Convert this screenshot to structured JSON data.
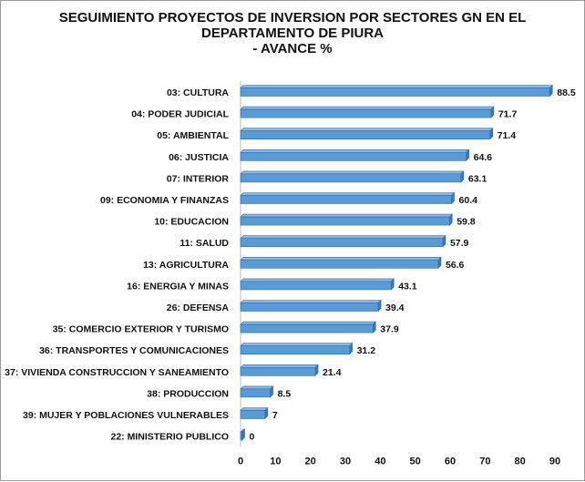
{
  "chart_data": {
    "type": "bar",
    "orientation": "horizontal",
    "title": "SEGUIMIENTO PROYECTOS DE INVERSION POR SECTORES GN EN EL\nDEPARTAMENTO DE PIURA\n- AVANCE %",
    "categories": [
      "03: CULTURA",
      "04: PODER JUDICIAL",
      "05: AMBIENTAL",
      "06: JUSTICIA",
      "07: INTERIOR",
      "09: ECONOMIA Y FINANZAS",
      "10: EDUCACION",
      "11: SALUD",
      "13: AGRICULTURA",
      "16: ENERGIA Y MINAS",
      "26: DEFENSA",
      "35: COMERCIO EXTERIOR Y TURISMO",
      "36: TRANSPORTES Y COMUNICACIONES",
      "37: VIVIENDA CONSTRUCCION Y SANEAMIENTO",
      "38: PRODUCCION",
      "39: MUJER Y POBLACIONES VULNERABLES",
      "22: MINISTERIO PUBLICO"
    ],
    "values": [
      88.5,
      71.7,
      71.4,
      64.6,
      63.1,
      60.4,
      59.8,
      57.9,
      56.6,
      43.1,
      39.4,
      37.9,
      31.2,
      21.4,
      8.5,
      7,
      0
    ],
    "value_labels": [
      "88.5",
      "71.7",
      "71.4",
      "64.6",
      "63.1",
      "60.4",
      "59.8",
      "57.9",
      "56.6",
      "43.1",
      "39.4",
      "37.9",
      "31.2",
      "21.4",
      "8.5",
      "7",
      "0"
    ],
    "xlim": [
      0,
      90
    ],
    "xticks": [
      "0",
      "10",
      "20",
      "30",
      "40",
      "50",
      "60",
      "70",
      "80",
      "90"
    ],
    "grid": false,
    "bar_color": "#5b9bd5",
    "bar_edge_color": "#2e6ca8"
  }
}
